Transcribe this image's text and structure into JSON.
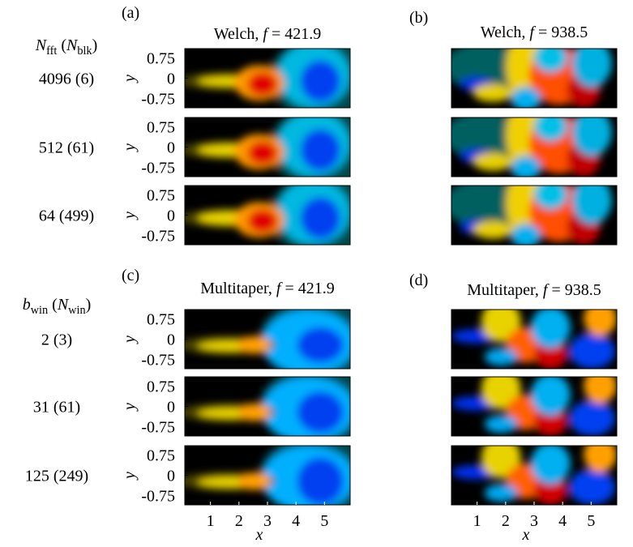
{
  "figure": {
    "groups": [
      {
        "header": [
          {
            "t": "N",
            "style": "i"
          },
          {
            "t": "fft",
            "style": "sub"
          },
          {
            "t": " (",
            "style": "r"
          },
          {
            "t": "N",
            "style": "i"
          },
          {
            "t": "blk",
            "style": "sub"
          },
          {
            "t": ")",
            "style": "r"
          }
        ],
        "rows": [
          "4096 (6)",
          "512 (61)",
          "64 (499)"
        ],
        "panels": [
          {
            "label": "(a)",
            "title": [
              {
                "t": "Welch, ",
                "style": "r"
              },
              {
                "t": "f",
                "style": "i"
              },
              {
                "t": " = 421.9",
                "style": "r"
              }
            ]
          },
          {
            "label": "(b)",
            "title": [
              {
                "t": "Welch, ",
                "style": "r"
              },
              {
                "t": "f",
                "style": "i"
              },
              {
                "t": " = 938.5",
                "style": "r"
              }
            ]
          }
        ]
      },
      {
        "header": [
          {
            "t": "b",
            "style": "i"
          },
          {
            "t": "win",
            "style": "sub"
          },
          {
            "t": " (",
            "style": "r"
          },
          {
            "t": "N",
            "style": "i"
          },
          {
            "t": "win",
            "style": "sub"
          },
          {
            "t": ")",
            "style": "r"
          }
        ],
        "rows": [
          "2 (3)",
          "31 (61)",
          "125 (249)"
        ],
        "panels": [
          {
            "label": "(c)",
            "title": [
              {
                "t": "Multitaper, ",
                "style": "r"
              },
              {
                "t": "f",
                "style": "i"
              },
              {
                "t": " = 421.9",
                "style": "r"
              }
            ]
          },
          {
            "label": "(d)",
            "title": [
              {
                "t": "Multitaper, ",
                "style": "r"
              },
              {
                "t": "f",
                "style": "i"
              },
              {
                "t": " = 938.5",
                "style": "r"
              }
            ]
          }
        ]
      }
    ],
    "y_axis": {
      "label": "y",
      "ylim": [
        -1.1,
        1.1
      ],
      "yticks": [
        0.75,
        0,
        -0.75
      ]
    },
    "x_axis": {
      "label": "x",
      "xlim": [
        0.1,
        5.9
      ],
      "xticks": [
        1,
        2,
        3,
        4,
        5
      ]
    }
  }
}
